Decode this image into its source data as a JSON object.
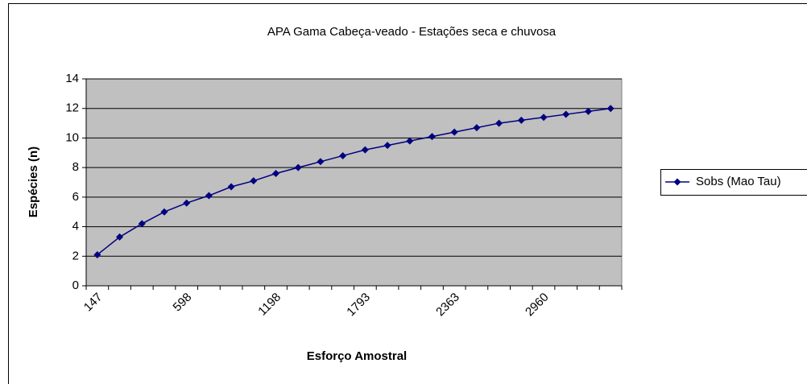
{
  "chart_data": {
    "type": "line",
    "title": "APA Gama Cabeça-veado - Estações seca e chuvosa",
    "x_label": "Esforço Amostral",
    "y_label": "Espécies (n)",
    "categories": [
      "147",
      null,
      null,
      null,
      "598",
      null,
      null,
      null,
      "1198",
      null,
      null,
      null,
      "1793",
      null,
      null,
      null,
      "2363",
      null,
      null,
      null,
      "2960",
      null,
      null,
      null
    ],
    "series": [
      {
        "name": "Sobs (Mao Tau)",
        "color": "#000080",
        "values": [
          2.1,
          3.3,
          4.2,
          5.0,
          5.6,
          6.1,
          6.7,
          7.1,
          7.6,
          8.0,
          8.4,
          8.8,
          9.2,
          9.5,
          9.8,
          10.1,
          10.4,
          10.7,
          11.0,
          11.2,
          11.4,
          11.6,
          11.8,
          12.0
        ]
      }
    ],
    "ylim": [
      0,
      14
    ],
    "yticks": [
      0,
      2,
      4,
      6,
      8,
      10,
      12,
      14
    ],
    "grid": true,
    "legend": "right",
    "plot_background": "#c0c0c0"
  }
}
